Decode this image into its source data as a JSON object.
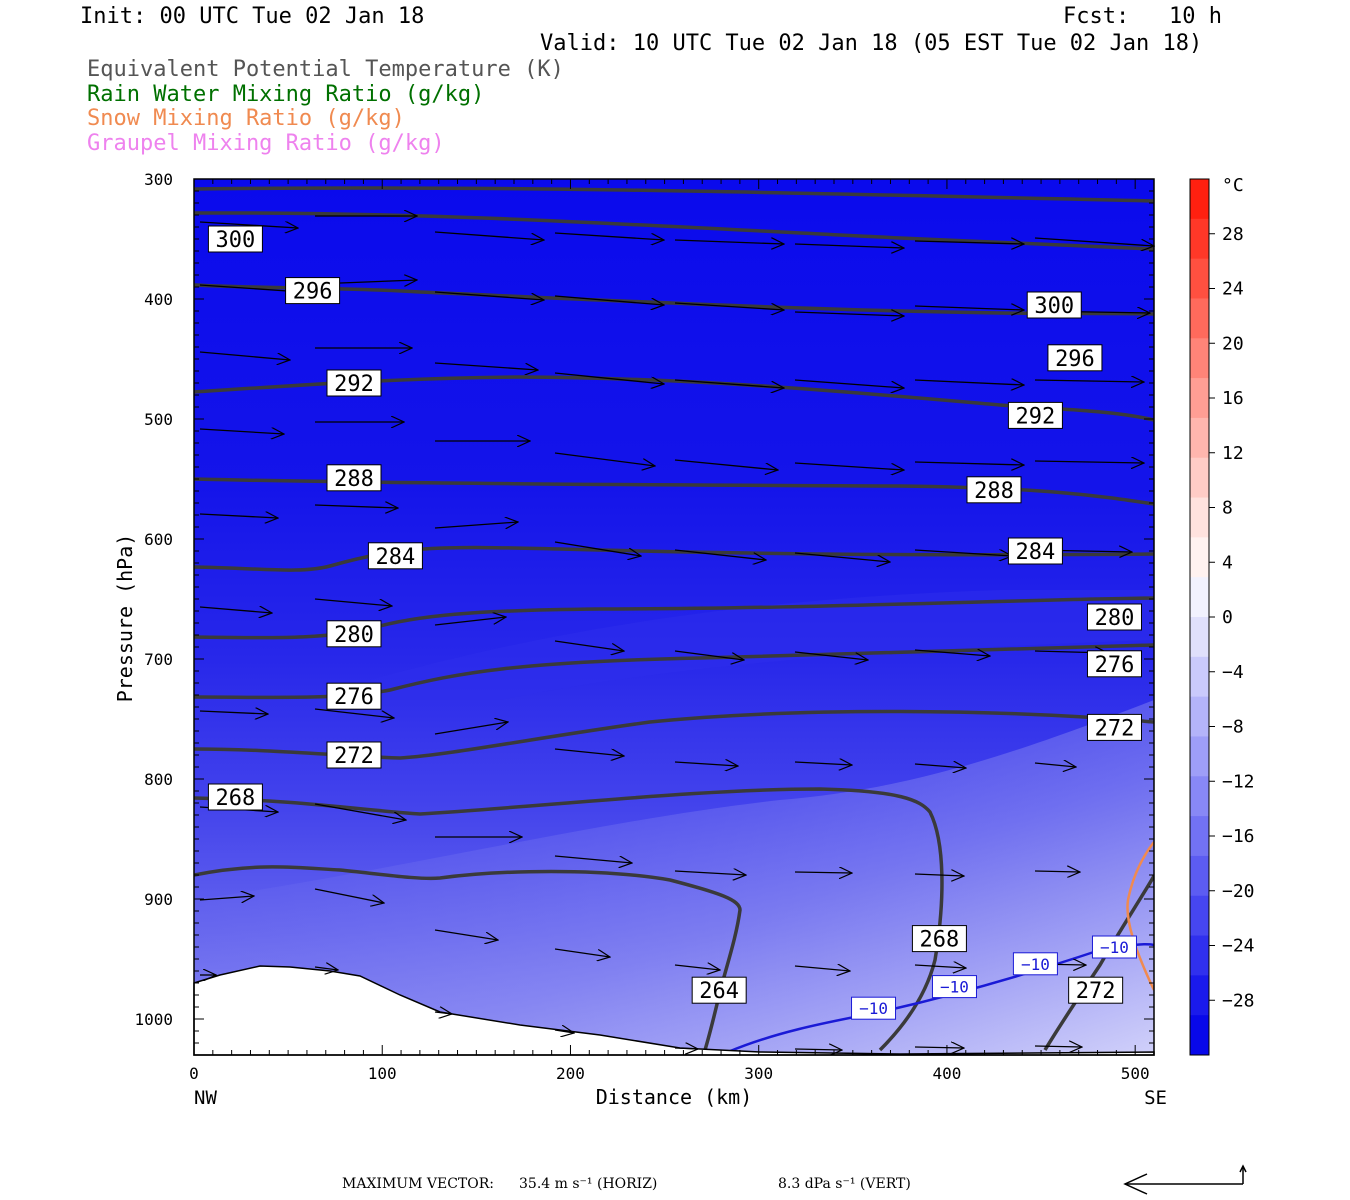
{
  "header": {
    "init": "Init: 00 UTC Tue 02 Jan 18",
    "fcst": "Fcst:   10 h",
    "valid": "Valid: 10 UTC Tue 02 Jan 18 (05 EST Tue 02 Jan 18)"
  },
  "legend": [
    {
      "label": "Equivalent Potential Temperature (K)",
      "color": "#555555"
    },
    {
      "label": "Rain Water Mixing Ratio (g/kg)",
      "color": "#007000"
    },
    {
      "label": "Snow Mixing Ratio (g/kg)",
      "color": "#f08a50"
    },
    {
      "label": "Graupel Mixing Ratio (g/kg)",
      "color": "#ee82ee"
    }
  ],
  "footer": {
    "max_vector_label": "MAXIMUM VECTOR:",
    "horiz": "35.4 m s⁻¹ (HORIZ)",
    "vert": "8.3 dPa s⁻¹ (VERT)"
  },
  "chart_data": {
    "type": "cross-section",
    "xlabel": "Distance (km)",
    "ylabel": "Pressure (hPa)",
    "x_ticks": [
      0,
      100,
      200,
      300,
      400,
      500
    ],
    "y_ticks": [
      300,
      400,
      500,
      600,
      700,
      800,
      900,
      1000
    ],
    "xlim": [
      0,
      510
    ],
    "ylim": [
      1030,
      300
    ],
    "x_end_labels": {
      "left": "NW",
      "right": "SE"
    },
    "colorbar": {
      "unit": "°C",
      "ticks": [
        "28",
        "24",
        "20",
        "16",
        "12",
        "8",
        "4",
        "0",
        "−4",
        "−8",
        "−12",
        "−16",
        "−20",
        "−24",
        "−28"
      ],
      "colors": [
        "#ff2010",
        "#ff3828",
        "#ff5040",
        "#ff6a5c",
        "#ff8478",
        "#ff9e94",
        "#ffb6ae",
        "#ffccc6",
        "#ffe2de",
        "#fff2f0",
        "#f2f2fe",
        "#e0e0fc",
        "#cacafc",
        "#b4b4fa",
        "#9e9ef8",
        "#8888f6",
        "#7272f4",
        "#5c5cf2",
        "#4646f0",
        "#3030ee",
        "#1a1aec",
        "#0808ea"
      ]
    },
    "theta_e_labels": [
      {
        "value": "300",
        "x": 22,
        "p": 350
      },
      {
        "value": "296",
        "x": 63,
        "p": 393
      },
      {
        "value": "292",
        "x": 85,
        "p": 470
      },
      {
        "value": "288",
        "x": 85,
        "p": 549
      },
      {
        "value": "284",
        "x": 107,
        "p": 614
      },
      {
        "value": "280",
        "x": 85,
        "p": 679
      },
      {
        "value": "276",
        "x": 85,
        "p": 731
      },
      {
        "value": "272",
        "x": 85,
        "p": 780
      },
      {
        "value": "268",
        "x": 22,
        "p": 815
      },
      {
        "value": "264",
        "x": 279,
        "p": 976
      },
      {
        "value": "268",
        "x": 396,
        "p": 933
      },
      {
        "value": "272",
        "x": 479,
        "p": 976
      },
      {
        "value": "300",
        "x": 457,
        "p": 405
      },
      {
        "value": "296",
        "x": 468,
        "p": 449
      },
      {
        "value": "292",
        "x": 447,
        "p": 497
      },
      {
        "value": "288",
        "x": 425,
        "p": 559
      },
      {
        "value": "284",
        "x": 447,
        "p": 610
      },
      {
        "value": "280",
        "x": 489,
        "p": 665
      },
      {
        "value": "276",
        "x": 489,
        "p": 704
      },
      {
        "value": "272",
        "x": 489,
        "p": 757
      }
    ],
    "temp_labels": [
      {
        "value": "−10",
        "x": 361,
        "p": 991
      },
      {
        "value": "−10",
        "x": 404,
        "p": 973
      },
      {
        "value": "−10",
        "x": 447,
        "p": 954
      },
      {
        "value": "−10",
        "x": 489,
        "p": 940
      }
    ]
  }
}
